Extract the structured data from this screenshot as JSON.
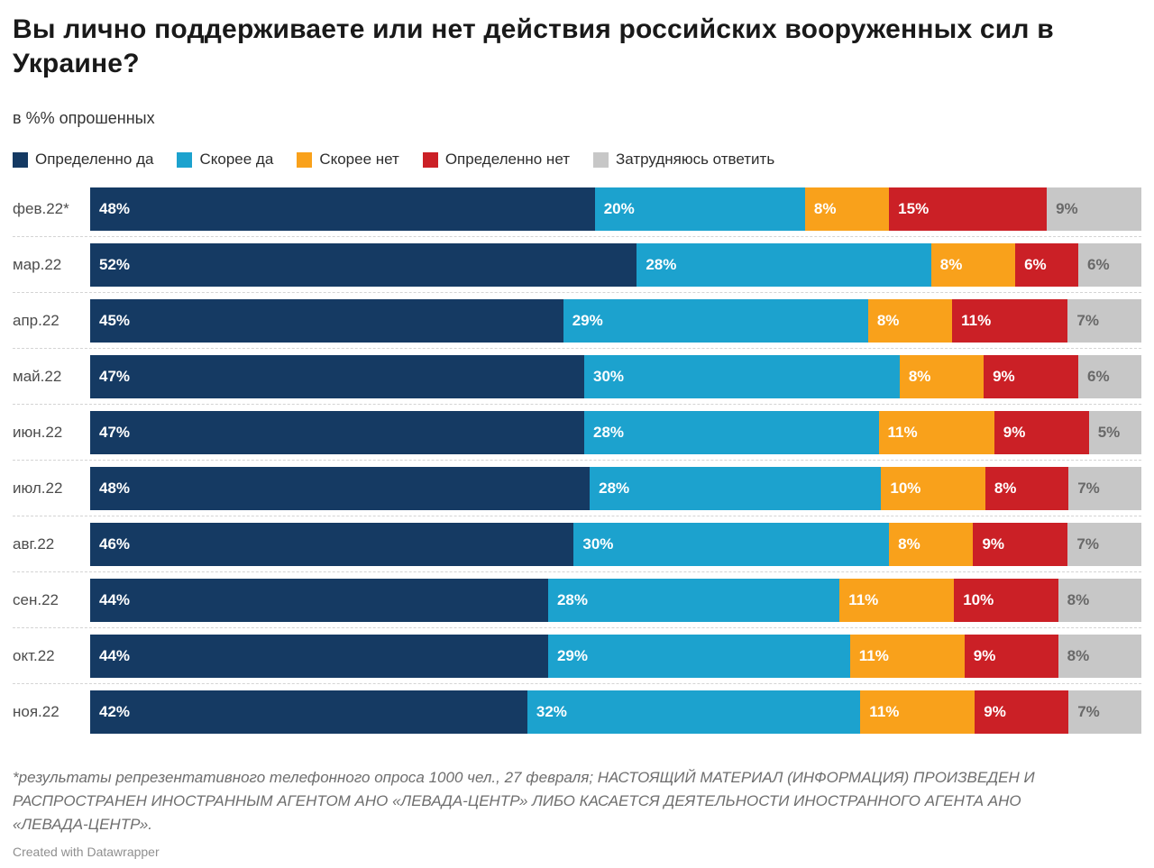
{
  "title": "Вы лично поддерживаете или нет действия российских вооруженных сил в Украине?",
  "subtitle": "в %% опрошенных",
  "legend": [
    {
      "label": "Определенно да",
      "color": "#153a63"
    },
    {
      "label": "Скорее да",
      "color": "#1ca2ce"
    },
    {
      "label": "Скорее нет",
      "color": "#f9a11b"
    },
    {
      "label": "Определенно нет",
      "color": "#cb2026"
    },
    {
      "label": "Затрудняюсь ответить",
      "color": "#c7c7c7"
    }
  ],
  "chart_data": {
    "type": "bar",
    "stacked": true,
    "orientation": "horizontal",
    "unit": "%",
    "title": "Вы лично поддерживаете или нет действия российских вооруженных сил в Украине?",
    "xlabel": "",
    "ylabel": "",
    "xlim": [
      0,
      100
    ],
    "grid": false,
    "legend_position": "top",
    "value_labels": "inside-start",
    "categories": [
      "фев.22*",
      "мар.22",
      "апр.22",
      "май.22",
      "июн.22",
      "июл.22",
      "авг.22",
      "сен.22",
      "окт.22",
      "ноя.22"
    ],
    "series": [
      {
        "name": "Определенно да",
        "color": "#153a63",
        "values": [
          48,
          52,
          45,
          47,
          47,
          48,
          46,
          44,
          44,
          42
        ]
      },
      {
        "name": "Скорее да",
        "color": "#1ca2ce",
        "values": [
          20,
          28,
          29,
          30,
          28,
          28,
          30,
          28,
          29,
          32
        ]
      },
      {
        "name": "Скорее нет",
        "color": "#f9a11b",
        "values": [
          8,
          8,
          8,
          8,
          11,
          10,
          8,
          11,
          11,
          11
        ]
      },
      {
        "name": "Определенно нет",
        "color": "#cb2026",
        "values": [
          15,
          6,
          11,
          9,
          9,
          8,
          9,
          10,
          9,
          9
        ]
      },
      {
        "name": "Затрудняюсь ответить",
        "color": "#c7c7c7",
        "values": [
          9,
          6,
          7,
          6,
          5,
          7,
          7,
          8,
          8,
          7
        ]
      }
    ]
  },
  "footnote": "*результаты репрезентативного телефонного опроса 1000 чел., 27 февраля; НАСТОЯЩИЙ МАТЕРИАЛ (ИНФОРМАЦИЯ) ПРОИЗВЕДЕН И РАСПРОСТРАНЕН ИНОСТРАННЫМ АГЕНТОМ АНО «ЛЕВАДА-ЦЕНТР» ЛИБО КАСАЕТСЯ ДЕЯТЕЛЬНОСТИ ИНОСТРАННОГО АГЕНТА АНО «ЛЕВАДА-ЦЕНТР».",
  "credit": "Created with Datawrapper"
}
